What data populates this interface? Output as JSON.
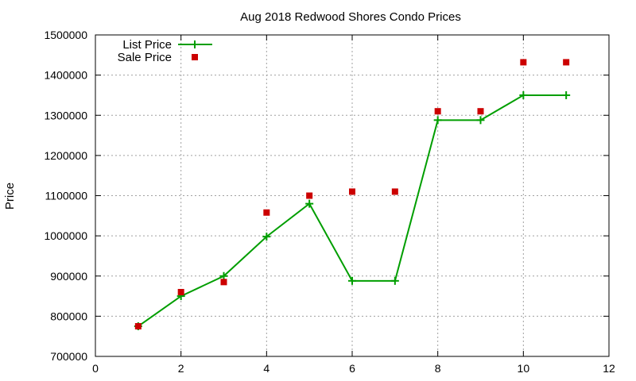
{
  "chart_data": {
    "type": "line",
    "title": "Aug 2018 Redwood Shores Condo Prices",
    "xlabel": "",
    "ylabel": "Price",
    "xlim": [
      0,
      12
    ],
    "ylim": [
      700000,
      1500000
    ],
    "x_ticks": [
      0,
      2,
      4,
      6,
      8,
      10,
      12
    ],
    "y_ticks": [
      700000,
      800000,
      900000,
      1000000,
      1100000,
      1200000,
      1300000,
      1400000,
      1500000
    ],
    "grid": true,
    "legend_position": "top-left",
    "series": [
      {
        "name": "List Price",
        "style": "linespoints",
        "marker": "plus",
        "color": "#009e00",
        "x": [
          1,
          2,
          3,
          4,
          5,
          6,
          7,
          8,
          9,
          10,
          11
        ],
        "y": [
          775000,
          850000,
          900000,
          998000,
          1080000,
          888000,
          888000,
          1288000,
          1288000,
          1350000,
          1350000
        ]
      },
      {
        "name": "Sale Price",
        "style": "points",
        "marker": "square",
        "color": "#cc0000",
        "x": [
          1,
          2,
          3,
          4,
          5,
          6,
          7,
          8,
          9,
          10,
          11
        ],
        "y": [
          775000,
          860000,
          885000,
          1058000,
          1100000,
          1110000,
          1110000,
          1310000,
          1310000,
          1432000,
          1432000
        ]
      }
    ]
  }
}
